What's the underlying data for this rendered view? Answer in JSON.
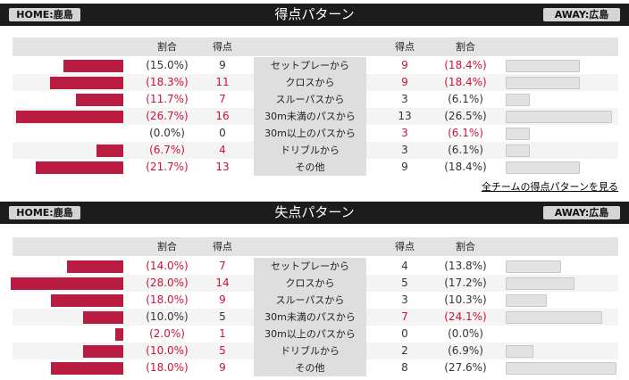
{
  "sections": [
    {
      "title": "得点パターン",
      "home_tag": "HOME:鹿島",
      "away_tag": "AWAY:広島",
      "col_ratio": "割合",
      "col_points": "得点",
      "rows": [
        {
          "label": "セットプレーから",
          "home_pct": "(15.0%)",
          "home_pts": "9",
          "away_pts": "9",
          "away_pct": "(18.4%)",
          "home_val": 15.0,
          "away_val": 18.4,
          "home_red": false,
          "away_red": true
        },
        {
          "label": "クロスから",
          "home_pct": "(18.3%)",
          "home_pts": "11",
          "away_pts": "9",
          "away_pct": "(18.4%)",
          "home_val": 18.3,
          "away_val": 18.4,
          "home_red": true,
          "away_red": true
        },
        {
          "label": "スルーパスから",
          "home_pct": "(11.7%)",
          "home_pts": "7",
          "away_pts": "3",
          "away_pct": "(6.1%)",
          "home_val": 11.7,
          "away_val": 6.1,
          "home_red": true,
          "away_red": false
        },
        {
          "label": "30m未満のパスから",
          "home_pct": "(26.7%)",
          "home_pts": "16",
          "away_pts": "13",
          "away_pct": "(26.5%)",
          "home_val": 26.7,
          "away_val": 26.5,
          "home_red": true,
          "away_red": false
        },
        {
          "label": "30m以上のパスから",
          "home_pct": "(0.0%)",
          "home_pts": "0",
          "away_pts": "3",
          "away_pct": "(6.1%)",
          "home_val": 0.0,
          "away_val": 6.1,
          "home_red": false,
          "away_red": true
        },
        {
          "label": "ドリブルから",
          "home_pct": "(6.7%)",
          "home_pts": "4",
          "away_pts": "3",
          "away_pct": "(6.1%)",
          "home_val": 6.7,
          "away_val": 6.1,
          "home_red": true,
          "away_red": false
        },
        {
          "label": "その他",
          "home_pct": "(21.7%)",
          "home_pts": "13",
          "away_pts": "9",
          "away_pct": "(18.4%)",
          "home_val": 21.7,
          "away_val": 18.4,
          "home_red": true,
          "away_red": false
        }
      ]
    },
    {
      "title": "失点パターン",
      "home_tag": "HOME:鹿島",
      "away_tag": "AWAY:広島",
      "col_ratio": "割合",
      "col_points": "得点",
      "rows": [
        {
          "label": "セットプレーから",
          "home_pct": "(14.0%)",
          "home_pts": "7",
          "away_pts": "4",
          "away_pct": "(13.8%)",
          "home_val": 14.0,
          "away_val": 13.8,
          "home_red": true,
          "away_red": false
        },
        {
          "label": "クロスから",
          "home_pct": "(28.0%)",
          "home_pts": "14",
          "away_pts": "5",
          "away_pct": "(17.2%)",
          "home_val": 28.0,
          "away_val": 17.2,
          "home_red": true,
          "away_red": false
        },
        {
          "label": "スルーパスから",
          "home_pct": "(18.0%)",
          "home_pts": "9",
          "away_pts": "3",
          "away_pct": "(10.3%)",
          "home_val": 18.0,
          "away_val": 10.3,
          "home_red": true,
          "away_red": false
        },
        {
          "label": "30m未満のパスから",
          "home_pct": "(10.0%)",
          "home_pts": "5",
          "away_pts": "7",
          "away_pct": "(24.1%)",
          "home_val": 10.0,
          "away_val": 24.1,
          "home_red": false,
          "away_red": true
        },
        {
          "label": "30m以上のパスから",
          "home_pct": "(2.0%)",
          "home_pts": "1",
          "away_pts": "0",
          "away_pct": "(0.0%)",
          "home_val": 2.0,
          "away_val": 0.0,
          "home_red": true,
          "away_red": false
        },
        {
          "label": "ドリブルから",
          "home_pct": "(10.0%)",
          "home_pts": "5",
          "away_pts": "2",
          "away_pct": "(6.9%)",
          "home_val": 10.0,
          "away_val": 6.9,
          "home_red": true,
          "away_red": false
        },
        {
          "label": "その他",
          "home_pct": "(18.0%)",
          "home_pts": "9",
          "away_pts": "8",
          "away_pct": "(27.6%)",
          "home_val": 18.0,
          "away_val": 27.6,
          "home_red": true,
          "away_red": false
        }
      ]
    }
  ],
  "all_teams_link": "全チームの得点パターンを見る",
  "colors": {
    "home_bar": "#b81c40",
    "away_bar": "#e2e2e2",
    "red_text": "#c8143c",
    "header_bg": "#1c1c1c"
  }
}
